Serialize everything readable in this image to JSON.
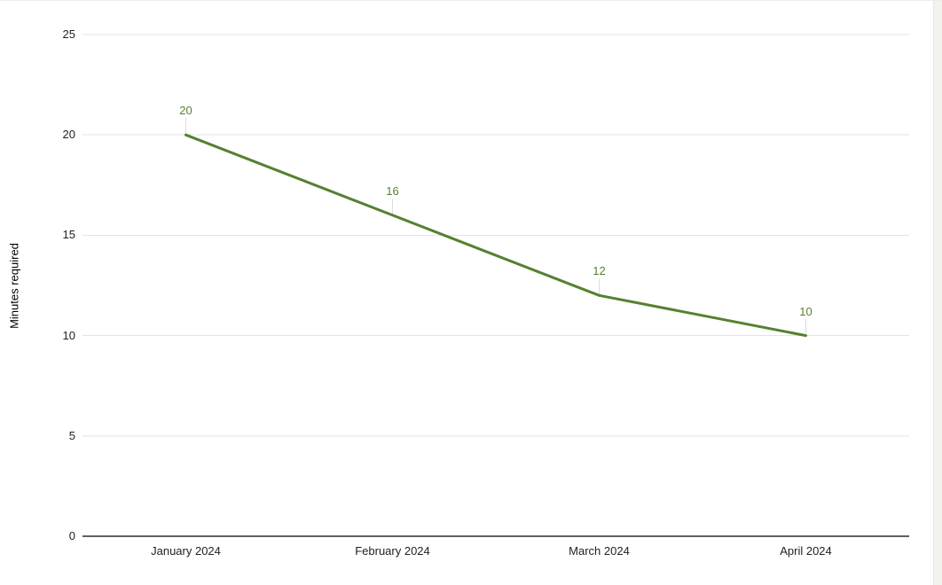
{
  "chart_data": {
    "type": "line",
    "title": "",
    "categories": [
      "January 2024",
      "February 2024",
      "March 2024",
      "April 2024"
    ],
    "series": [
      {
        "name": "Minutes required",
        "values": [
          20,
          16,
          12,
          10
        ]
      }
    ],
    "data_labels": [
      "20",
      "16",
      "12",
      "10"
    ],
    "xlabel": "",
    "ylabel": "Minutes required",
    "ylim": [
      0,
      25
    ],
    "yticks": [
      0,
      5,
      10,
      15,
      20,
      25
    ],
    "grid": true,
    "legend_position": "none"
  },
  "colors": {
    "series_line": "#568030",
    "data_label": "#568030",
    "gridline": "#e3e3e3",
    "baseline": "#616161",
    "leader_line": "#dcdcdc",
    "tick_text": "#212121",
    "axis_title_text": "#000000",
    "right_strip": "#f3f3ed",
    "background": "#ffffff"
  }
}
